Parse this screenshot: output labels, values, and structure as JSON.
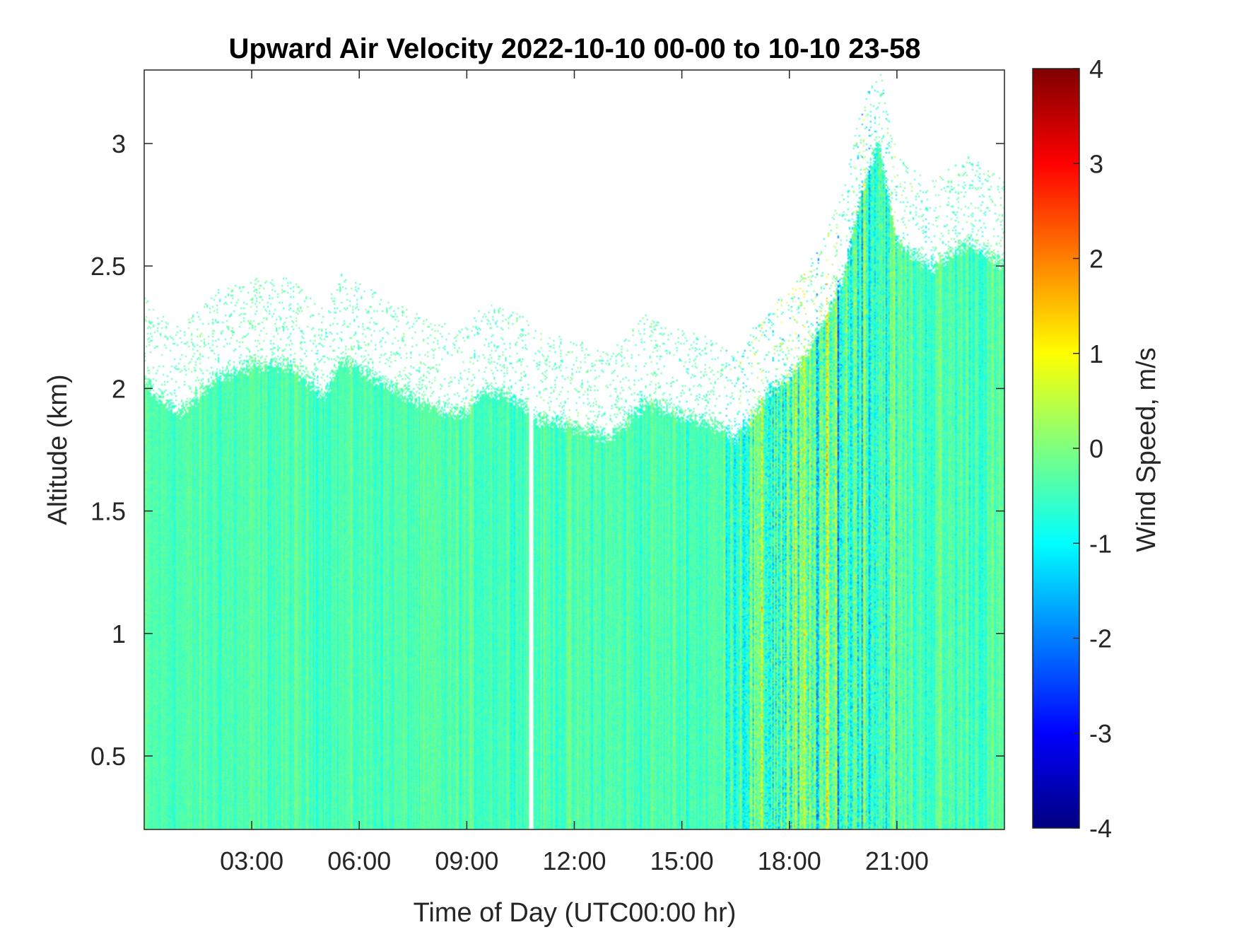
{
  "chart_data": {
    "type": "heatmap",
    "title": "Upward Air Velocity 2022-10-10 00-00 to 10-10 23-58",
    "xlabel": "Time of Day (UTC00:00 hr)",
    "ylabel": "Altitude (km)",
    "colorbar_label": "Wind Speed, m/s",
    "x_units": "hours UTC",
    "xlim": [
      0,
      24
    ],
    "ylim": [
      0.2,
      3.3
    ],
    "clim": [
      -4,
      4
    ],
    "x_ticks": [
      3,
      6,
      9,
      12,
      15,
      18,
      21
    ],
    "x_tick_labels": [
      "03:00",
      "06:00",
      "09:00",
      "12:00",
      "15:00",
      "18:00",
      "21:00"
    ],
    "y_ticks": [
      0.5,
      1,
      1.5,
      2,
      2.5,
      3
    ],
    "y_tick_labels": [
      "0.5",
      "1",
      "1.5",
      "2",
      "2.5",
      "3"
    ],
    "colorbar_ticks": [
      -4,
      -3,
      -2,
      -1,
      0,
      1,
      2,
      3,
      4
    ],
    "colorbar_tick_labels": [
      "-4",
      "-3",
      "-2",
      "-1",
      "0",
      "1",
      "2",
      "3",
      "4"
    ],
    "colormap": "jet",
    "colormap_stops": [
      "#00007f",
      "#0000ff",
      "#007fff",
      "#00ffff",
      "#7fff7f",
      "#ffff00",
      "#ff7f00",
      "#ff0000",
      "#7f0000"
    ],
    "data_top_km": {
      "hours": [
        0,
        0.3,
        1,
        1.5,
        2,
        3,
        4,
        4.5,
        5,
        5.5,
        6,
        7,
        8,
        9,
        9.5,
        10.5,
        10.8,
        11,
        12,
        13,
        14,
        15,
        16,
        16.5,
        17,
        17.5,
        18,
        18.5,
        19,
        19.5,
        20,
        20.5,
        21,
        22,
        23,
        24
      ],
      "top_km": [
        2.05,
        1.98,
        1.9,
        1.97,
        2.05,
        2.1,
        2.1,
        2.05,
        1.97,
        2.12,
        2.08,
        2.0,
        1.93,
        1.9,
        2.0,
        1.95,
        1.92,
        1.88,
        1.85,
        1.8,
        1.95,
        1.9,
        1.85,
        1.8,
        1.9,
        2.0,
        2.05,
        2.15,
        2.3,
        2.45,
        2.8,
        3.0,
        2.6,
        2.5,
        2.6,
        2.5
      ]
    },
    "data_gap_hours": [
      10.75,
      10.85
    ],
    "variance_by_hour": {
      "hours": [
        0,
        8,
        16,
        16.5,
        17.5,
        18.5,
        19.5,
        20.5,
        21.5,
        24
      ],
      "spread_ms": [
        0.35,
        0.35,
        0.45,
        0.9,
        1.3,
        1.4,
        1.3,
        1.0,
        0.6,
        0.5
      ]
    },
    "mean_velocity_ms": -0.4
  }
}
